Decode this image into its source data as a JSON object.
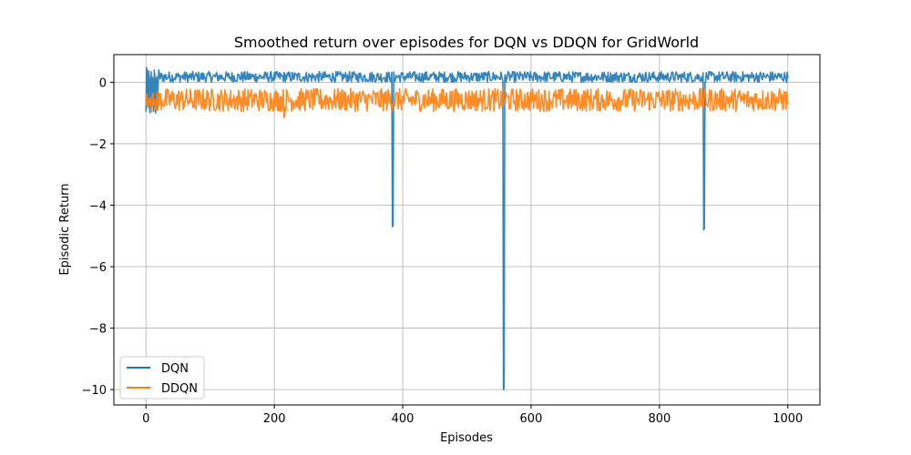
{
  "chart_data": {
    "type": "line",
    "title": "Smoothed return over episodes for DQN vs DDQN for GridWorld",
    "xlabel": "Episodes",
    "ylabel": "Episodic Return",
    "xlim": [
      -50,
      1050
    ],
    "ylim": [
      -10.5,
      0.9
    ],
    "xticks": [
      0,
      200,
      400,
      600,
      800,
      1000
    ],
    "yticks": [
      0,
      -2,
      -4,
      -6,
      -8,
      -10
    ],
    "grid": true,
    "legend_position": "lower-left",
    "series": [
      {
        "name": "DQN",
        "color": "#1f77b4",
        "band": [
          0.0,
          0.35
        ],
        "start_dip": {
          "x_start": 0,
          "x_end": 20,
          "min": -1.05
        },
        "spikes": [
          {
            "x": 384,
            "y": -4.7
          },
          {
            "x": 557,
            "y": -10.0
          },
          {
            "x": 869,
            "y": -4.8
          }
        ]
      },
      {
        "name": "DDQN",
        "color": "#ff7f0e",
        "band": [
          -0.95,
          -0.2
        ],
        "start_dip": {
          "x_start": 0,
          "x_end": 20,
          "min": -1.0
        },
        "spikes": [
          {
            "x": 215,
            "y": -1.15
          }
        ]
      }
    ]
  }
}
